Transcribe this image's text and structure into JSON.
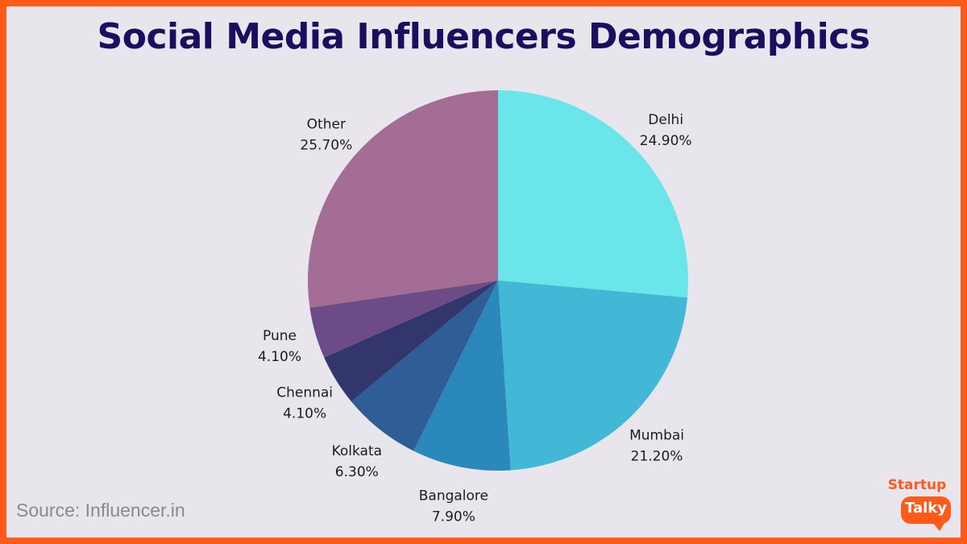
{
  "page": {
    "title": "Social Media Influencers Demographics",
    "source": "Source: Influencer.in"
  },
  "logo": {
    "top_text": "Startup",
    "bottom_text": "Talky"
  },
  "colors": {
    "background": "#e8e6ec",
    "border": "#ff5a1a",
    "title": "#1a0f5e"
  },
  "chart_data": {
    "type": "pie",
    "title": "Social Media Influencers Demographics",
    "slices": [
      {
        "label": "Delhi",
        "value_text": "24.90%",
        "value": 24.9,
        "color": "#6ae6ea"
      },
      {
        "label": "Mumbai",
        "value_text": "21.20%",
        "value": 21.2,
        "color": "#43b7d6"
      },
      {
        "label": "Bangalore",
        "value_text": "7.90%",
        "value": 7.9,
        "color": "#2b88bb"
      },
      {
        "label": "Kolkata",
        "value_text": "6.30%",
        "value": 6.3,
        "color": "#2e5e95"
      },
      {
        "label": "Chennai",
        "value_text": "4.10%",
        "value": 4.1,
        "color": "#33356d"
      },
      {
        "label": "Pune",
        "value_text": "4.10%",
        "value": 4.1,
        "color": "#6c4b86"
      },
      {
        "label": "Other",
        "value_text": "25.70%",
        "value": 25.7,
        "color": "#a36d96"
      }
    ],
    "start_angle_deg": 0,
    "direction": "clockwise"
  }
}
